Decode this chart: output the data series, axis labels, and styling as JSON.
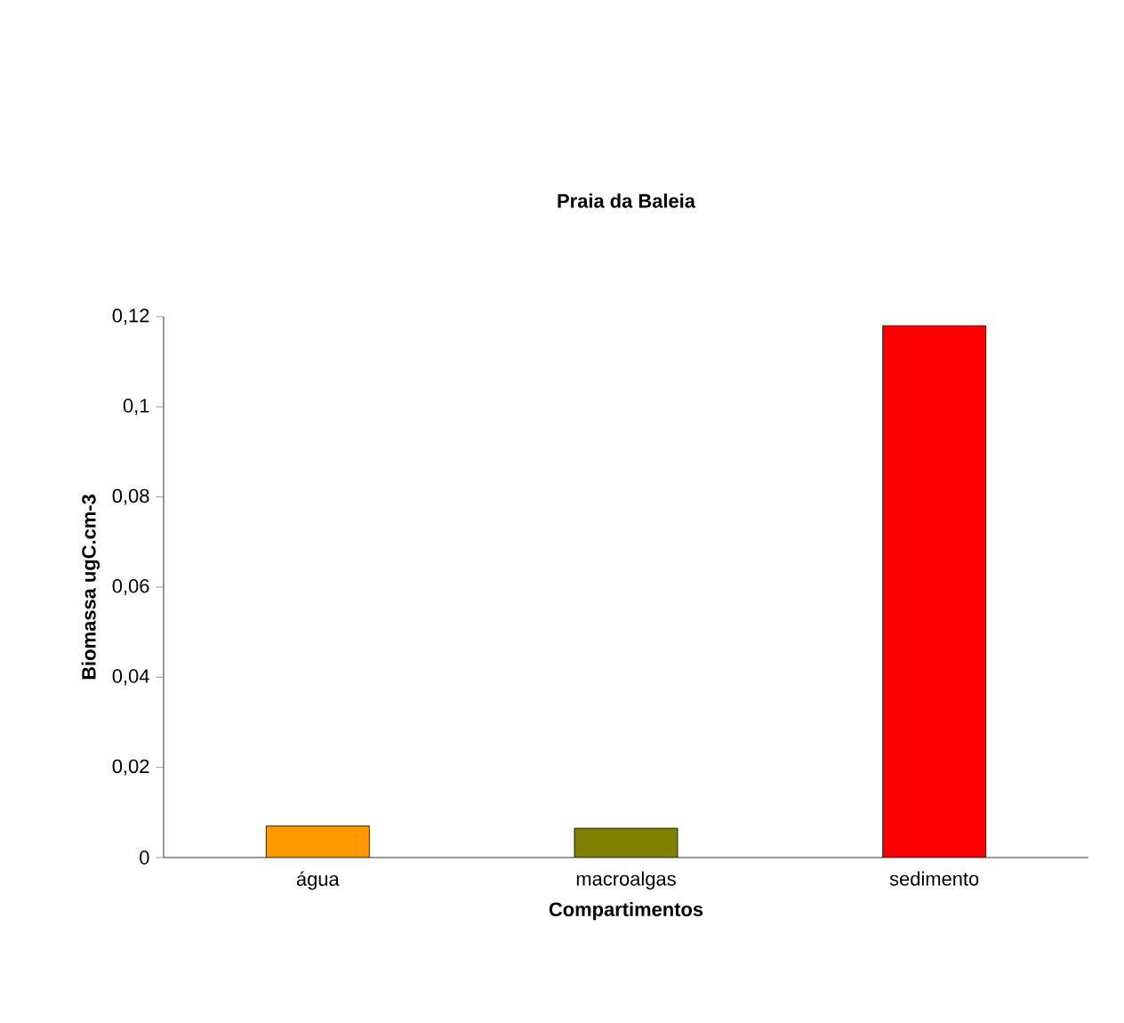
{
  "chart_data": {
    "type": "bar",
    "title": "Praia da Baleia",
    "xlabel": "Compartimentos",
    "ylabel": "Biomassa ugC.cm-3",
    "categories": [
      "água",
      "macroalgas",
      "sedimento"
    ],
    "values": [
      0.007,
      0.0065,
      0.118
    ],
    "colors": [
      "#ff9900",
      "#808000",
      "#ff0000"
    ],
    "ylim": [
      0,
      0.12
    ],
    "yticks": [
      0,
      {
        "value": 0.02,
        "label": "0,02"
      },
      {
        "value": 0.04,
        "label": "0,04"
      },
      {
        "value": 0.06,
        "label": "0,06"
      },
      {
        "value": 0.08,
        "label": "0,08"
      },
      {
        "value": 0.1,
        "label": "0,1"
      },
      {
        "value": 0.12,
        "label": "0,12"
      }
    ],
    "grid": false
  }
}
